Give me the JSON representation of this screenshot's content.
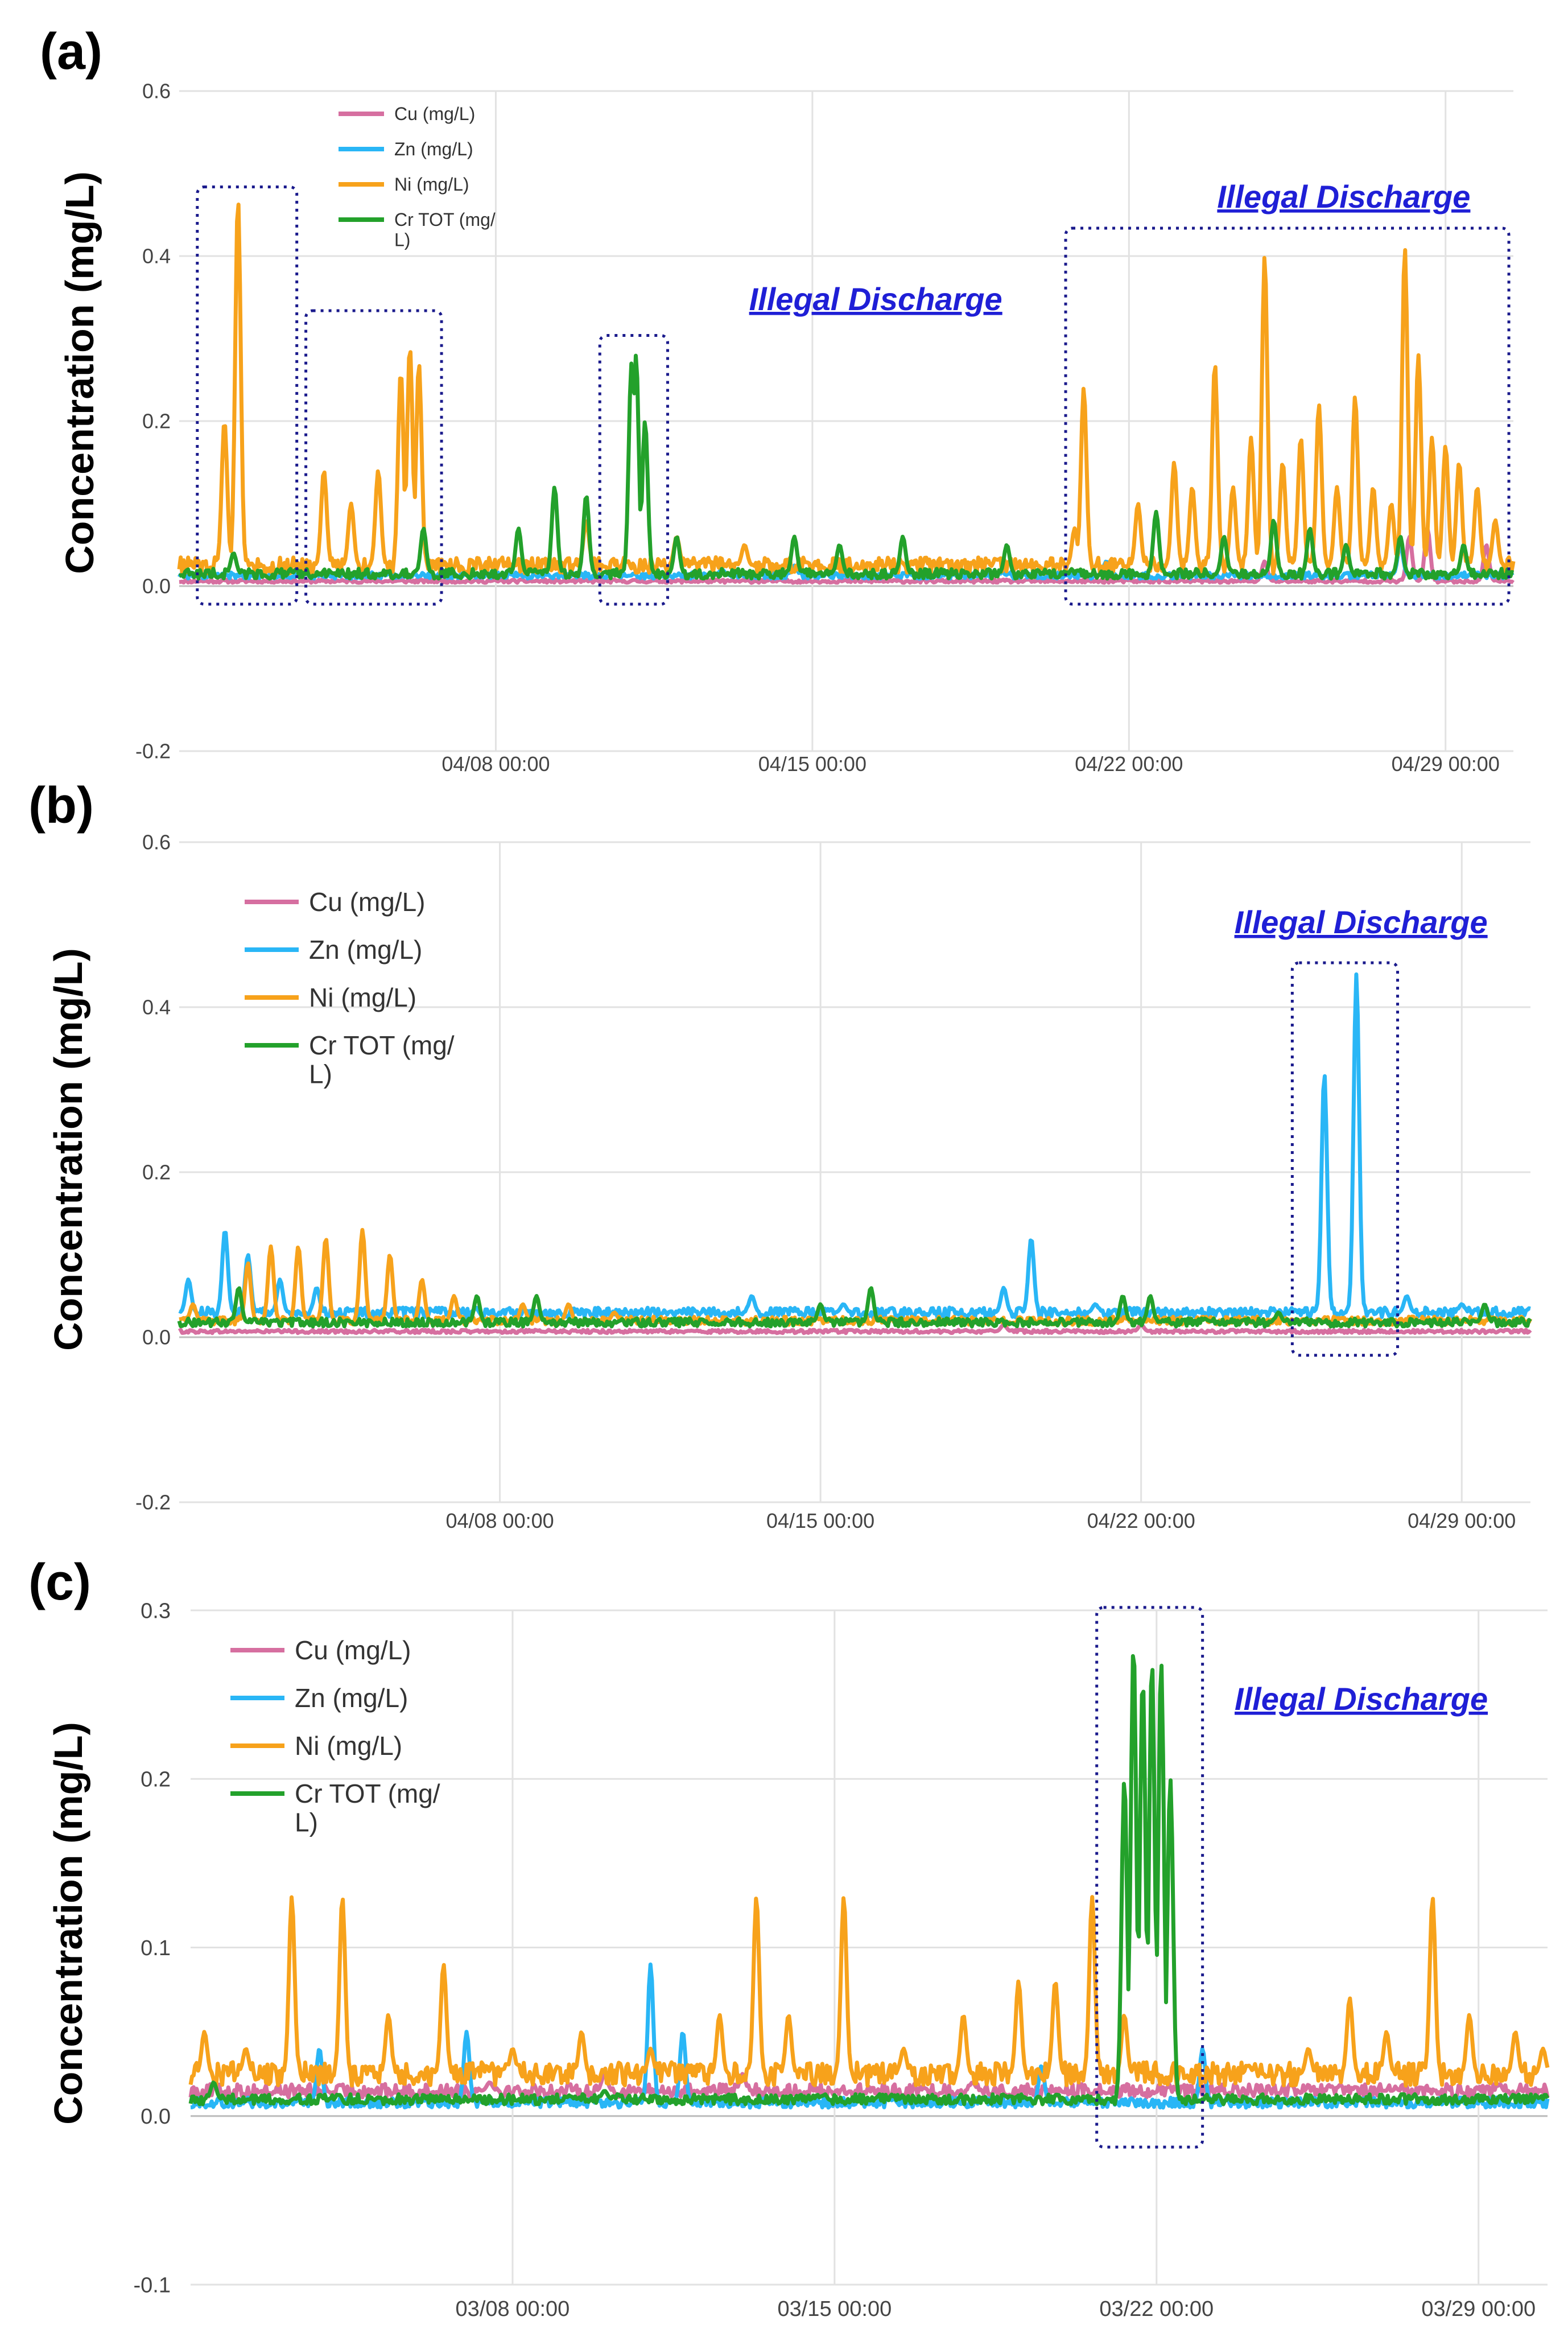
{
  "chart_data": [
    {
      "id": "a",
      "panel_label": "(a)",
      "type": "line",
      "ylabel": "Concentration (mg/L)",
      "ylim": [
        -0.2,
        0.6
      ],
      "yticks": [
        "0.6",
        "0.4",
        "0.2",
        "0.0",
        "-0.2"
      ],
      "ytick_values": [
        0.6,
        0.4,
        0.2,
        0.0,
        -0.2
      ],
      "xlim": [
        0,
        29.5
      ],
      "xticks": [
        "04/08 00:00",
        "04/15 00:00",
        "04/22 00:00",
        "04/29 00:00"
      ],
      "xtick_values": [
        7,
        14,
        21,
        28
      ],
      "legend": [
        "Cu (mg/L)",
        "Zn (mg/L)",
        "Ni (mg/L)",
        "Cr TOT (mg/",
        "L)"
      ],
      "annotations": [
        {
          "text": "Illegal Discharge",
          "region": [
            14.5,
            16.3
          ]
        },
        {
          "text": "Illegal Discharge",
          "region": [
            21.2,
            30.3
          ]
        }
      ],
      "boxes": [
        [
          0.4,
          2.6,
          0.47
        ],
        [
          2.8,
          5.8,
          0.32
        ],
        [
          9.3,
          10.8,
          0.29
        ],
        [
          19.6,
          29.4,
          0.42
        ]
      ],
      "series": [
        {
          "name": "Cu",
          "color": "#d66fa0",
          "base": 0.006,
          "noise": 0.002,
          "spikes": [
            [
              24.0,
              0.03
            ],
            [
              27.2,
              0.06
            ],
            [
              27.6,
              0.07
            ],
            [
              28.9,
              0.05
            ]
          ]
        },
        {
          "name": "Zn",
          "color": "#29b6f6",
          "base": 0.013,
          "noise": 0.004,
          "spikes": [
            [
              12.0,
              0.02
            ],
            [
              13.6,
              0.025
            ],
            [
              20.5,
              0.03
            ],
            [
              27.0,
              0.05
            ]
          ]
        },
        {
          "name": "Ni",
          "color": "#f7a21b",
          "base": 0.025,
          "noise": 0.01,
          "spikes": [
            [
              1.3,
              0.47
            ],
            [
              1.0,
              0.2
            ],
            [
              3.2,
              0.14
            ],
            [
              3.8,
              0.1
            ],
            [
              4.4,
              0.14
            ],
            [
              4.9,
              0.26
            ],
            [
              5.1,
              0.29
            ],
            [
              5.3,
              0.27
            ],
            [
              9.0,
              0.08
            ],
            [
              11.0,
              0.06
            ],
            [
              12.5,
              0.05
            ],
            [
              19.8,
              0.07
            ],
            [
              20.0,
              0.24
            ],
            [
              21.2,
              0.1
            ],
            [
              22.0,
              0.15
            ],
            [
              22.4,
              0.12
            ],
            [
              22.9,
              0.27
            ],
            [
              23.3,
              0.12
            ],
            [
              23.7,
              0.18
            ],
            [
              24.0,
              0.4
            ],
            [
              24.4,
              0.15
            ],
            [
              24.8,
              0.18
            ],
            [
              25.2,
              0.22
            ],
            [
              25.6,
              0.12
            ],
            [
              26.0,
              0.23
            ],
            [
              26.4,
              0.12
            ],
            [
              26.8,
              0.1
            ],
            [
              27.1,
              0.41
            ],
            [
              27.4,
              0.28
            ],
            [
              27.7,
              0.18
            ],
            [
              28.0,
              0.17
            ],
            [
              28.3,
              0.15
            ],
            [
              28.7,
              0.12
            ],
            [
              29.1,
              0.08
            ]
          ]
        },
        {
          "name": "Cr TOT",
          "color": "#23a12b",
          "base": 0.015,
          "noise": 0.006,
          "spikes": [
            [
              1.2,
              0.04
            ],
            [
              5.4,
              0.07
            ],
            [
              7.5,
              0.07
            ],
            [
              8.3,
              0.12
            ],
            [
              9.0,
              0.11
            ],
            [
              10.0,
              0.27
            ],
            [
              10.1,
              0.28
            ],
            [
              10.3,
              0.2
            ],
            [
              11.0,
              0.06
            ],
            [
              13.6,
              0.06
            ],
            [
              14.6,
              0.05
            ],
            [
              16.0,
              0.06
            ],
            [
              18.3,
              0.05
            ],
            [
              21.6,
              0.09
            ],
            [
              23.1,
              0.06
            ],
            [
              24.2,
              0.08
            ],
            [
              25.0,
              0.07
            ],
            [
              25.8,
              0.05
            ],
            [
              27.0,
              0.06
            ],
            [
              28.4,
              0.05
            ]
          ]
        }
      ]
    },
    {
      "id": "b",
      "panel_label": "(b)",
      "type": "line",
      "ylabel": "Concentration (mg/L)",
      "ylim": [
        -0.2,
        0.6
      ],
      "yticks": [
        "0.6",
        "0.4",
        "0.2",
        "0.0",
        "-0.2"
      ],
      "ytick_values": [
        0.6,
        0.4,
        0.2,
        0.0,
        -0.2
      ],
      "xlim": [
        0,
        29.5
      ],
      "xticks": [
        "04/08 00:00",
        "04/15 00:00",
        "04/22 00:00",
        "04/29 00:00"
      ],
      "xtick_values": [
        7,
        14,
        21,
        28
      ],
      "legend": [
        "Cu (mg/L)",
        "Zn (mg/L)",
        "Ni (mg/L)",
        "Cr TOT (mg/",
        "L)"
      ],
      "annotations": [
        {
          "text": "Illegal Discharge",
          "region": [
            22.8,
            28.8
          ]
        }
      ],
      "boxes": [
        [
          24.3,
          26.6,
          0.44
        ]
      ],
      "series": [
        {
          "name": "Cu",
          "color": "#d66fa0",
          "base": 0.007,
          "noise": 0.002,
          "spikes": [
            [
              18.0,
              0.015
            ],
            [
              21.0,
              0.015
            ]
          ]
        },
        {
          "name": "Zn",
          "color": "#29b6f6",
          "base": 0.03,
          "noise": 0.006,
          "spikes": [
            [
              0.2,
              0.07
            ],
            [
              1.0,
              0.13
            ],
            [
              1.5,
              0.1
            ],
            [
              2.2,
              0.07
            ],
            [
              3.0,
              0.06
            ],
            [
              12.5,
              0.05
            ],
            [
              14.5,
              0.04
            ],
            [
              18.0,
              0.06
            ],
            [
              18.6,
              0.12
            ],
            [
              20.0,
              0.04
            ],
            [
              25.0,
              0.32
            ],
            [
              25.7,
              0.44
            ],
            [
              26.8,
              0.05
            ],
            [
              28.0,
              0.04
            ]
          ]
        },
        {
          "name": "Ni",
          "color": "#f7a21b",
          "base": 0.02,
          "noise": 0.005,
          "spikes": [
            [
              0.3,
              0.04
            ],
            [
              1.5,
              0.09
            ],
            [
              2.0,
              0.11
            ],
            [
              2.6,
              0.11
            ],
            [
              3.2,
              0.12
            ],
            [
              4.0,
              0.13
            ],
            [
              4.6,
              0.1
            ],
            [
              5.3,
              0.07
            ],
            [
              6.0,
              0.05
            ],
            [
              7.5,
              0.04
            ],
            [
              8.5,
              0.04
            ],
            [
              9.5,
              0.03
            ]
          ]
        },
        {
          "name": "Cr TOT",
          "color": "#23a12b",
          "base": 0.018,
          "noise": 0.005,
          "spikes": [
            [
              1.3,
              0.06
            ],
            [
              6.5,
              0.05
            ],
            [
              7.8,
              0.05
            ],
            [
              14.0,
              0.04
            ],
            [
              15.1,
              0.06
            ],
            [
              20.6,
              0.05
            ],
            [
              21.2,
              0.05
            ],
            [
              24.0,
              0.03
            ],
            [
              28.5,
              0.04
            ]
          ]
        }
      ]
    },
    {
      "id": "c",
      "panel_label": "(c)",
      "type": "line",
      "ylabel": "Concentration (mg/L)",
      "ylim": [
        -0.1,
        0.3
      ],
      "yticks": [
        "0.3",
        "0.2",
        "0.1",
        "0.0",
        "-0.1"
      ],
      "ytick_values": [
        0.3,
        0.2,
        0.1,
        0.0,
        -0.1
      ],
      "xlim": [
        0,
        29.5
      ],
      "xticks": [
        "03/08 00:00",
        "03/15 00:00",
        "03/22 00:00",
        "03/29 00:00"
      ],
      "xtick_values": [
        7,
        14,
        21,
        28
      ],
      "legend": [
        "Cu (mg/L)",
        "Zn (mg/L)",
        "Ni (mg/L)",
        "Cr TOT (mg/",
        "L)"
      ],
      "annotations": [
        {
          "text": "Illegal Discharge",
          "region": [
            22.5,
            28.4
          ]
        }
      ],
      "boxes": [
        [
          19.7,
          22.0,
          0.295
        ]
      ],
      "series": [
        {
          "name": "Cu",
          "color": "#d66fa0",
          "base": 0.015,
          "noise": 0.004,
          "spikes": [
            [
              6.5,
              0.02
            ],
            [
              9.0,
              0.025
            ],
            [
              12.0,
              0.025
            ],
            [
              17.0,
              0.02
            ],
            [
              26.0,
              0.015
            ]
          ]
        },
        {
          "name": "Zn",
          "color": "#29b6f6",
          "base": 0.008,
          "noise": 0.003,
          "spikes": [
            [
              2.8,
              0.04
            ],
            [
              6.0,
              0.05
            ],
            [
              10.0,
              0.09
            ],
            [
              10.7,
              0.05
            ],
            [
              18.5,
              0.03
            ],
            [
              22.0,
              0.04
            ]
          ]
        },
        {
          "name": "Ni",
          "color": "#f7a21b",
          "base": 0.025,
          "noise": 0.007,
          "spikes": [
            [
              0.3,
              0.05
            ],
            [
              1.2,
              0.04
            ],
            [
              2.2,
              0.13
            ],
            [
              3.3,
              0.13
            ],
            [
              4.3,
              0.06
            ],
            [
              5.5,
              0.09
            ],
            [
              7.0,
              0.04
            ],
            [
              8.5,
              0.05
            ],
            [
              10.0,
              0.04
            ],
            [
              11.5,
              0.06
            ],
            [
              12.3,
              0.13
            ],
            [
              13.0,
              0.06
            ],
            [
              14.2,
              0.13
            ],
            [
              15.5,
              0.04
            ],
            [
              16.8,
              0.06
            ],
            [
              18.0,
              0.08
            ],
            [
              18.8,
              0.08
            ],
            [
              19.6,
              0.13
            ],
            [
              20.3,
              0.06
            ],
            [
              23.0,
              0.03
            ],
            [
              24.3,
              0.04
            ],
            [
              25.2,
              0.07
            ],
            [
              26.0,
              0.05
            ],
            [
              27.0,
              0.13
            ],
            [
              27.8,
              0.06
            ],
            [
              28.8,
              0.05
            ],
            [
              29.4,
              0.04
            ]
          ]
        },
        {
          "name": "Cr TOT",
          "color": "#23a12b",
          "base": 0.01,
          "noise": 0.003,
          "spikes": [
            [
              20.3,
              0.2
            ],
            [
              20.5,
              0.28
            ],
            [
              20.7,
              0.26
            ],
            [
              20.9,
              0.27
            ],
            [
              21.1,
              0.27
            ],
            [
              21.3,
              0.2
            ],
            [
              0.5,
              0.02
            ],
            [
              9.0,
              0.015
            ]
          ]
        }
      ]
    }
  ]
}
